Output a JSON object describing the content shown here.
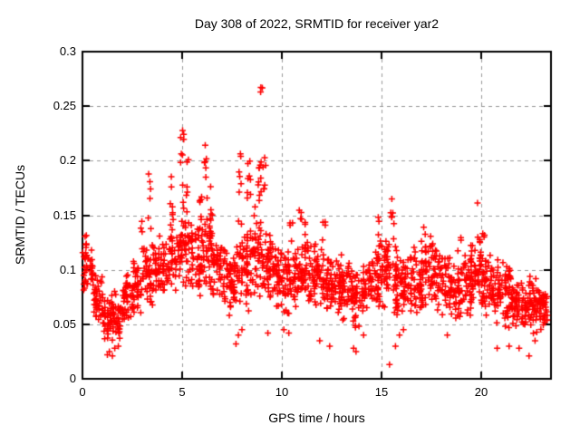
{
  "title": "Day 308 of 2022, SRMTID for receiver yar2",
  "chart_data": {
    "type": "scatter",
    "title": "Day 308 of 2022, SRMTID for receiver yar2",
    "xlabel": "GPS time / hours",
    "ylabel": "SRMTID / TECUs",
    "xlim": [
      0,
      23.5
    ],
    "ylim": [
      0,
      0.3
    ],
    "xticks": [
      0,
      5,
      10,
      15,
      20
    ],
    "xtick_labels": [
      "0",
      "5",
      "10",
      "15",
      "20"
    ],
    "yticks": [
      0,
      0.05,
      0.1,
      0.15,
      0.2,
      0.25,
      0.3
    ],
    "ytick_labels": [
      "0",
      "0.05",
      "0.1",
      "0.15",
      "0.2",
      "0.25",
      "0.3"
    ],
    "grid": true,
    "grid_color": "#999999",
    "marker": "+",
    "marker_color": "#ff0000",
    "border_color": "#000000",
    "series_name": "SRMTID",
    "legend": "none",
    "max_point": [
      8.95,
      0.277
    ],
    "density_bins": [
      [
        0.0,
        0.5,
        0.075,
        0.128,
        40
      ],
      [
        0.5,
        1.0,
        0.048,
        0.105,
        40
      ],
      [
        1.0,
        1.5,
        0.03,
        0.08,
        42
      ],
      [
        1.5,
        2.0,
        0.032,
        0.082,
        42
      ],
      [
        2.0,
        2.5,
        0.05,
        0.1,
        40
      ],
      [
        2.5,
        3.0,
        0.055,
        0.115,
        40
      ],
      [
        3.0,
        3.5,
        0.06,
        0.125,
        40
      ],
      [
        3.5,
        4.0,
        0.06,
        0.135,
        40
      ],
      [
        4.0,
        4.5,
        0.068,
        0.14,
        40
      ],
      [
        4.5,
        5.0,
        0.075,
        0.15,
        40
      ],
      [
        5.0,
        5.5,
        0.08,
        0.16,
        42
      ],
      [
        5.5,
        6.0,
        0.07,
        0.15,
        40
      ],
      [
        6.0,
        6.5,
        0.078,
        0.155,
        42
      ],
      [
        6.5,
        7.0,
        0.068,
        0.14,
        40
      ],
      [
        7.0,
        7.5,
        0.055,
        0.125,
        40
      ],
      [
        7.5,
        8.0,
        0.055,
        0.135,
        42
      ],
      [
        8.0,
        8.5,
        0.06,
        0.15,
        42
      ],
      [
        8.5,
        9.0,
        0.07,
        0.16,
        42
      ],
      [
        9.0,
        9.5,
        0.068,
        0.155,
        42
      ],
      [
        9.5,
        10.0,
        0.06,
        0.13,
        40
      ],
      [
        10.0,
        10.5,
        0.055,
        0.12,
        40
      ],
      [
        10.5,
        11.0,
        0.06,
        0.13,
        40
      ],
      [
        11.0,
        11.5,
        0.065,
        0.14,
        42
      ],
      [
        11.5,
        12.0,
        0.06,
        0.135,
        40
      ],
      [
        12.0,
        12.5,
        0.055,
        0.12,
        40
      ],
      [
        12.5,
        13.0,
        0.055,
        0.115,
        40
      ],
      [
        13.0,
        13.5,
        0.05,
        0.115,
        40
      ],
      [
        13.5,
        14.0,
        0.045,
        0.11,
        40
      ],
      [
        14.0,
        14.5,
        0.055,
        0.115,
        40
      ],
      [
        14.5,
        15.0,
        0.06,
        0.13,
        40
      ],
      [
        15.0,
        15.5,
        0.06,
        0.14,
        40
      ],
      [
        15.5,
        16.0,
        0.05,
        0.13,
        40
      ],
      [
        16.0,
        16.5,
        0.05,
        0.12,
        40
      ],
      [
        16.5,
        17.0,
        0.055,
        0.125,
        40
      ],
      [
        17.0,
        17.5,
        0.06,
        0.135,
        40
      ],
      [
        17.5,
        18.0,
        0.055,
        0.13,
        40
      ],
      [
        18.0,
        18.5,
        0.055,
        0.12,
        40
      ],
      [
        18.5,
        19.0,
        0.05,
        0.115,
        40
      ],
      [
        19.0,
        19.5,
        0.055,
        0.12,
        40
      ],
      [
        19.5,
        20.0,
        0.06,
        0.13,
        40
      ],
      [
        20.0,
        20.5,
        0.055,
        0.12,
        40
      ],
      [
        20.5,
        21.0,
        0.05,
        0.11,
        40
      ],
      [
        21.0,
        21.5,
        0.045,
        0.115,
        40
      ],
      [
        21.5,
        22.0,
        0.045,
        0.1,
        42
      ],
      [
        22.0,
        22.5,
        0.045,
        0.095,
        42
      ],
      [
        22.5,
        23.0,
        0.04,
        0.095,
        44
      ],
      [
        23.0,
        23.3,
        0.045,
        0.09,
        30
      ]
    ],
    "spike_clusters": [
      [
        0.15,
        0.115,
        0.132,
        4
      ],
      [
        2.95,
        0.11,
        0.145,
        4
      ],
      [
        3.35,
        0.13,
        0.19,
        6
      ],
      [
        4.45,
        0.13,
        0.192,
        7
      ],
      [
        5.0,
        0.15,
        0.23,
        10
      ],
      [
        5.3,
        0.15,
        0.205,
        6
      ],
      [
        5.9,
        0.13,
        0.185,
        6
      ],
      [
        6.2,
        0.14,
        0.215,
        8
      ],
      [
        6.45,
        0.13,
        0.185,
        6
      ],
      [
        7.9,
        0.14,
        0.21,
        8
      ],
      [
        8.35,
        0.13,
        0.215,
        9
      ],
      [
        8.9,
        0.16,
        0.245,
        10
      ],
      [
        8.95,
        0.255,
        0.277,
        3
      ],
      [
        9.1,
        0.14,
        0.22,
        6
      ],
      [
        10.45,
        0.12,
        0.145,
        4
      ],
      [
        10.9,
        0.12,
        0.155,
        4
      ],
      [
        11.2,
        0.125,
        0.152,
        4
      ],
      [
        12.1,
        0.12,
        0.148,
        4
      ],
      [
        14.9,
        0.12,
        0.15,
        5
      ],
      [
        15.55,
        0.125,
        0.174,
        7
      ],
      [
        17.2,
        0.115,
        0.147,
        5
      ],
      [
        18.9,
        0.11,
        0.13,
        3
      ],
      [
        19.9,
        0.1,
        0.168,
        9
      ],
      [
        20.15,
        0.105,
        0.14,
        4
      ]
    ],
    "low_outliers": [
      [
        1.25,
        0.022
      ],
      [
        1.35,
        0.025
      ],
      [
        1.5,
        0.021
      ],
      [
        1.62,
        0.028
      ],
      [
        1.8,
        0.03
      ],
      [
        7.7,
        0.032
      ],
      [
        7.82,
        0.04
      ],
      [
        8.0,
        0.045
      ],
      [
        9.3,
        0.042
      ],
      [
        10.1,
        0.045
      ],
      [
        10.35,
        0.042
      ],
      [
        11.9,
        0.035
      ],
      [
        12.4,
        0.03
      ],
      [
        13.6,
        0.028
      ],
      [
        13.72,
        0.025
      ],
      [
        14.1,
        0.04
      ],
      [
        15.4,
        0.013
      ],
      [
        15.7,
        0.03
      ],
      [
        15.9,
        0.04
      ],
      [
        16.1,
        0.045
      ],
      [
        18.3,
        0.04
      ],
      [
        20.8,
        0.028
      ],
      [
        21.4,
        0.03
      ],
      [
        21.9,
        0.028
      ],
      [
        22.4,
        0.021
      ],
      [
        22.7,
        0.035
      ]
    ]
  }
}
